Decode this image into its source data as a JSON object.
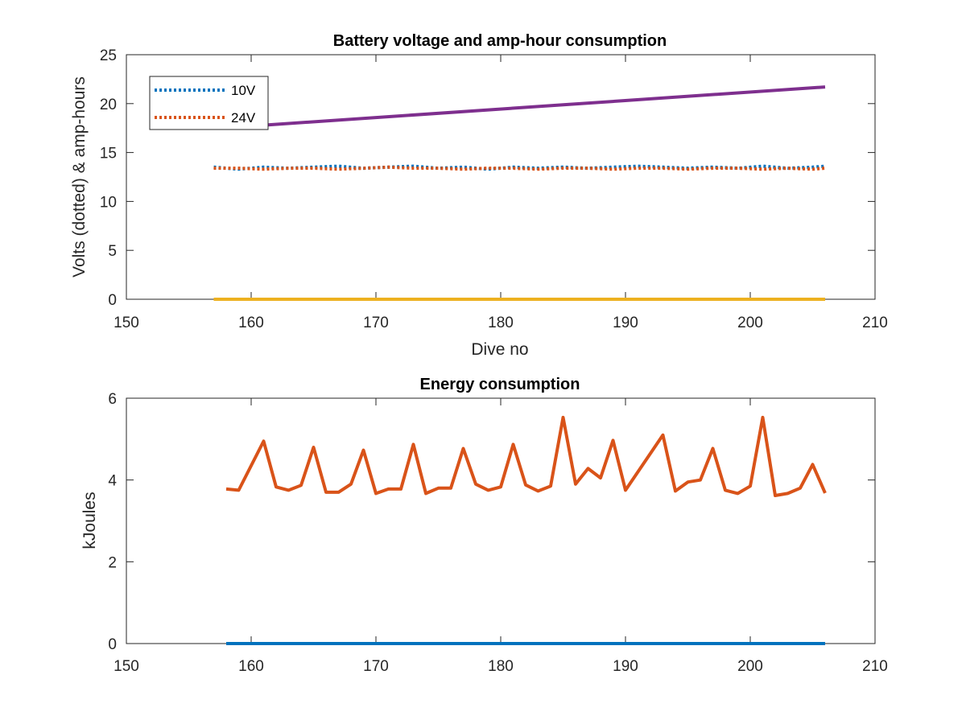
{
  "chart_data": [
    {
      "type": "line",
      "title": "Battery voltage and amp-hour consumption",
      "xlabel": "Dive no",
      "ylabel": "Volts (dotted) & amp-hours",
      "xlim": [
        150,
        210
      ],
      "ylim": [
        0,
        25
      ],
      "xticks": [
        150,
        160,
        170,
        180,
        190,
        200,
        210
      ],
      "yticks": [
        0,
        5,
        10,
        15,
        20,
        25
      ],
      "grid": false,
      "legend": {
        "placement": "top-left",
        "entries": [
          "10V",
          "24V"
        ]
      },
      "series": [
        {
          "name": "10V",
          "style": "dotted",
          "color": "#0072BD",
          "x": [
            157,
            159,
            161,
            163,
            165,
            167,
            169,
            171,
            173,
            175,
            177,
            179,
            181,
            183,
            185,
            187,
            189,
            191,
            193,
            195,
            197,
            199,
            201,
            203,
            205,
            206
          ],
          "y": [
            13.5,
            13.3,
            13.5,
            13.4,
            13.5,
            13.6,
            13.4,
            13.5,
            13.6,
            13.4,
            13.5,
            13.3,
            13.5,
            13.4,
            13.5,
            13.4,
            13.5,
            13.6,
            13.5,
            13.4,
            13.5,
            13.4,
            13.6,
            13.4,
            13.5,
            13.6
          ]
        },
        {
          "name": "24V",
          "style": "dotted",
          "color": "#D95319",
          "x": [
            157,
            159,
            161,
            163,
            165,
            167,
            169,
            171,
            173,
            175,
            177,
            179,
            181,
            183,
            185,
            187,
            189,
            191,
            193,
            195,
            197,
            199,
            201,
            203,
            205,
            206
          ],
          "y": [
            13.4,
            13.4,
            13.3,
            13.4,
            13.4,
            13.3,
            13.4,
            13.5,
            13.4,
            13.4,
            13.3,
            13.4,
            13.4,
            13.3,
            13.4,
            13.4,
            13.3,
            13.4,
            13.4,
            13.3,
            13.4,
            13.4,
            13.3,
            13.4,
            13.3,
            13.4
          ]
        },
        {
          "style": "solid",
          "color": "#7E2F8E",
          "x": [
            161,
            206
          ],
          "y": [
            17.8,
            21.7
          ]
        },
        {
          "style": "solid",
          "color": "#EDB120",
          "x": [
            157,
            206
          ],
          "y": [
            0,
            0
          ]
        }
      ]
    },
    {
      "type": "line",
      "title": "Energy consumption",
      "xlabel": "",
      "ylabel": "kJoules",
      "xlim": [
        150,
        210
      ],
      "ylim": [
        0,
        6
      ],
      "xticks": [
        150,
        160,
        170,
        180,
        190,
        200,
        210
      ],
      "yticks": [
        0,
        2,
        4,
        6
      ],
      "grid": false,
      "series": [
        {
          "style": "solid",
          "color": "#0072BD",
          "x": [
            158,
            206
          ],
          "y": [
            0,
            0
          ]
        },
        {
          "style": "solid",
          "color": "#D95319",
          "x": [
            158,
            159,
            161,
            162,
            163,
            164,
            165,
            166,
            167,
            168,
            169,
            170,
            171,
            172,
            173,
            174,
            175,
            176,
            177,
            178,
            179,
            180,
            181,
            182,
            183,
            184,
            185,
            186,
            187,
            188,
            189,
            190,
            193,
            194,
            195,
            196,
            197,
            198,
            199,
            200,
            201,
            202,
            203,
            204,
            205,
            206
          ],
          "y": [
            3.78,
            3.75,
            4.95,
            3.83,
            3.75,
            3.87,
            4.8,
            3.7,
            3.7,
            3.9,
            4.73,
            3.67,
            3.78,
            3.78,
            4.87,
            3.67,
            3.8,
            3.8,
            4.77,
            3.9,
            3.75,
            3.83,
            4.87,
            3.88,
            3.73,
            3.85,
            5.53,
            3.9,
            4.28,
            4.05,
            4.97,
            3.75,
            5.1,
            3.73,
            3.95,
            4.0,
            4.77,
            3.75,
            3.67,
            3.85,
            5.53,
            3.62,
            3.67,
            3.8,
            4.38,
            3.68
          ]
        }
      ]
    }
  ]
}
